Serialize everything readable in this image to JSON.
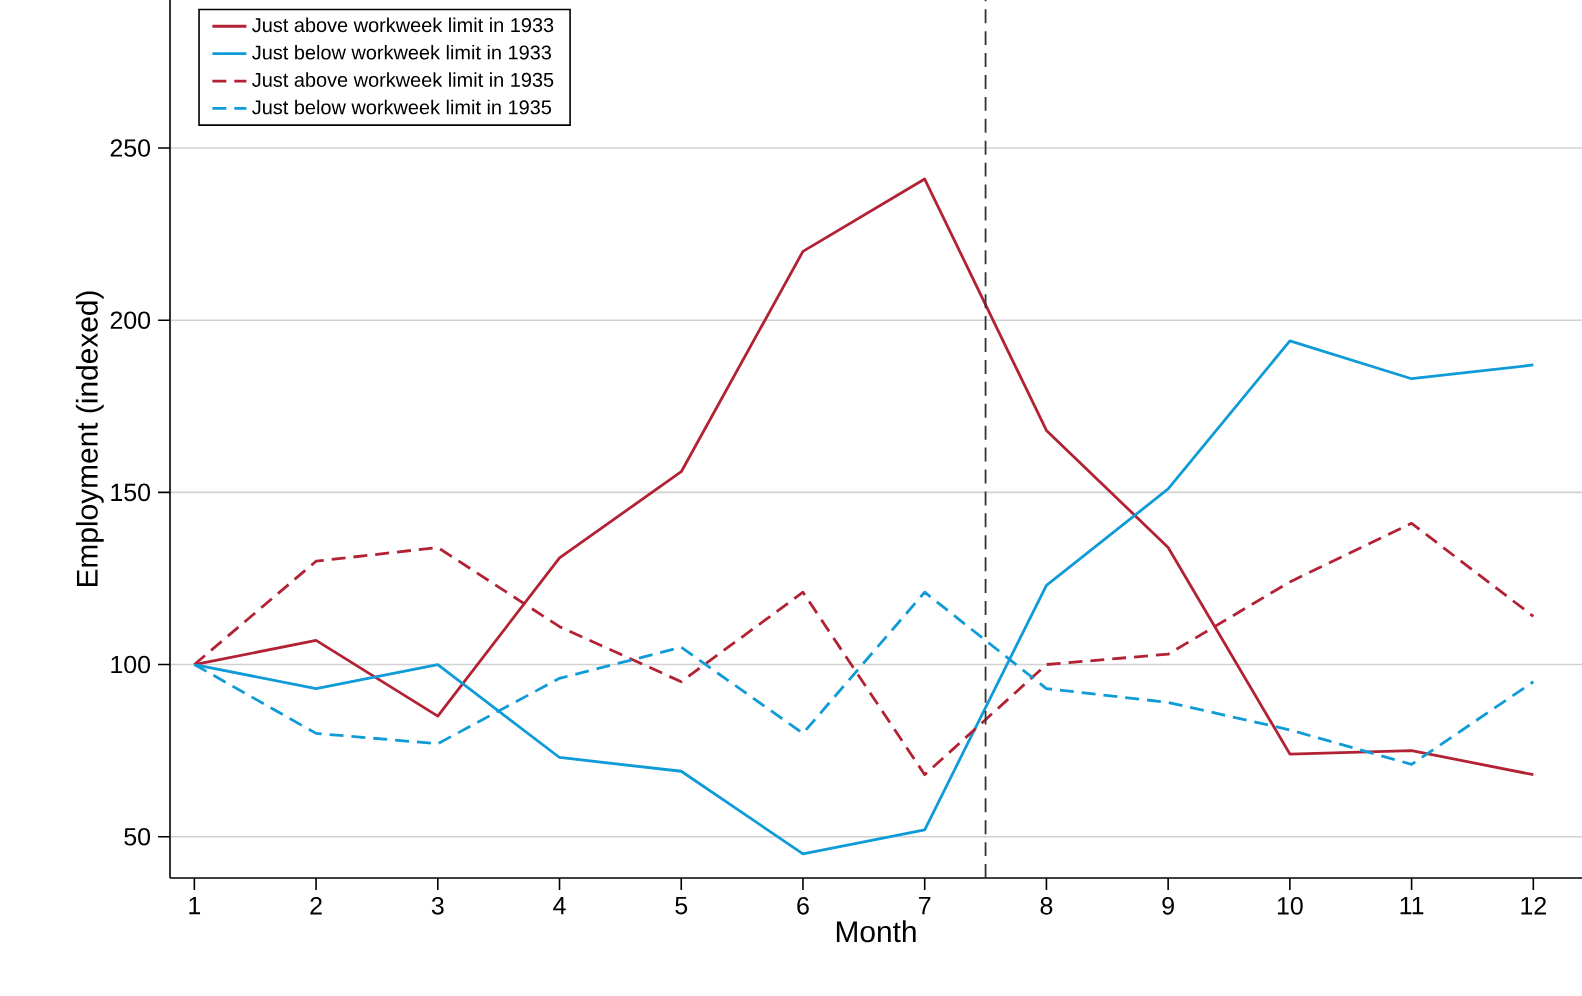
{
  "chart_data": {
    "type": "line",
    "xlabel": "Month",
    "ylabel": "Employment (indexed)",
    "x": [
      1,
      2,
      3,
      4,
      5,
      6,
      7,
      8,
      9,
      10,
      11,
      12
    ],
    "xlim": [
      0.8,
      12.4
    ],
    "ylim": [
      38,
      293
    ],
    "xticks": [
      1,
      2,
      3,
      4,
      5,
      6,
      7,
      8,
      9,
      10,
      11,
      12
    ],
    "yticks": [
      50,
      100,
      150,
      200,
      250
    ],
    "grid": "y",
    "legend": "top left",
    "marker": "none",
    "series": [
      {
        "name": "Just above workweek limit in 1933",
        "color": "#b22234",
        "line_style": "solid",
        "values": [
          100,
          107,
          85,
          131,
          156,
          220,
          241,
          168,
          134,
          74,
          75,
          68
        ]
      },
      {
        "name": "Just below workweek limit in 1933",
        "color": "#0f9bd7",
        "line_style": "solid",
        "values": [
          100,
          93,
          100,
          73,
          69,
          45,
          52,
          123,
          151,
          194,
          183,
          187
        ]
      },
      {
        "name": "Just above workweek limit in 1935",
        "color": "#b22234",
        "line_style": "dashed",
        "values": [
          100,
          130,
          134,
          111,
          95,
          121,
          68,
          100,
          103,
          124,
          141,
          114
        ]
      },
      {
        "name": "Just below workweek limit in 1935",
        "color": "#0f9bd7",
        "line_style": "dashed",
        "values": [
          100,
          80,
          77,
          96,
          105,
          80,
          121,
          93,
          89,
          81,
          71,
          95
        ]
      }
    ],
    "ref_lines": [
      {
        "axis": "x",
        "value": 7.5,
        "color": "#333333",
        "line_style": "dashed"
      }
    ]
  }
}
